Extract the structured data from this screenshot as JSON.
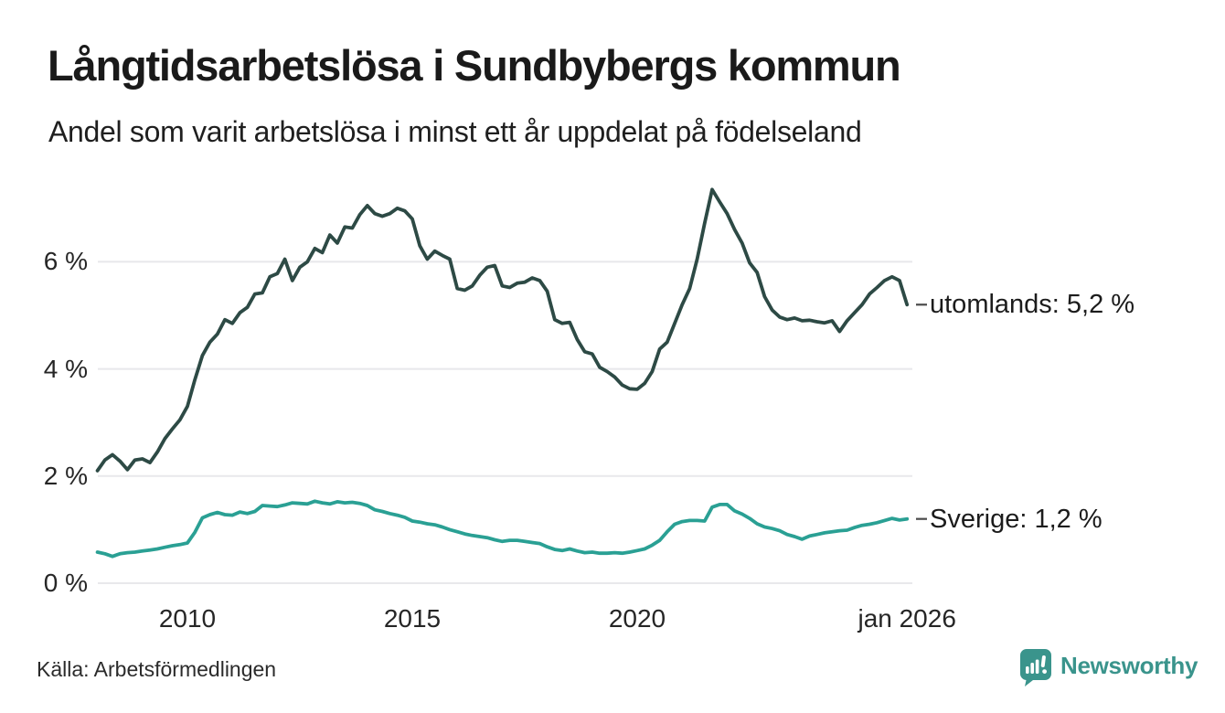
{
  "header": {
    "title": "Långtidsarbetslösa i Sundbybergs kommun",
    "subtitle": "Andel som varit arbetslösa i minst ett år uppdelat på födelseland"
  },
  "source": {
    "label": "Källa: Arbetsförmedlingen"
  },
  "branding": {
    "name": "Newsworthy",
    "color": "#3a948c",
    "icon": "newsworthy-speech-bubble-chart-icon"
  },
  "chart_data": {
    "type": "line",
    "title": "Långtidsarbetslösa i Sundbybergs kommun",
    "subtitle": "Andel som varit arbetslösa i minst ett år uppdelat på födelseland",
    "x_unit": "year (monthly series)",
    "x_range": [
      2008.0,
      2026.0
    ],
    "y_range": [
      0,
      7.75
    ],
    "grid": "horizontal",
    "grid_color": "#e8e8eb",
    "tick_dash_color": "#4a4a4a",
    "yticks": [
      {
        "value": 0,
        "label": "0 %"
      },
      {
        "value": 2,
        "label": "2 %"
      },
      {
        "value": 4,
        "label": "4 %"
      },
      {
        "value": 6,
        "label": "6 %"
      }
    ],
    "xticks": [
      {
        "value": 2010,
        "label": "2010"
      },
      {
        "value": 2015,
        "label": "2015"
      },
      {
        "value": 2020,
        "label": "2020"
      },
      {
        "value": 2026,
        "label": "jan 2026"
      }
    ],
    "series": [
      {
        "name": "utomlands",
        "color": "#2d4a45",
        "end_label": "utomlands: 5,2 %",
        "end_value_pct": 5.2,
        "x_start": 2008.0,
        "x_step": 0.16667,
        "values": [
          2.1,
          2.3,
          2.4,
          2.28,
          2.12,
          2.3,
          2.32,
          2.25,
          2.45,
          2.7,
          2.88,
          3.05,
          3.3,
          3.8,
          4.25,
          4.5,
          4.65,
          4.92,
          4.85,
          5.05,
          5.15,
          5.4,
          5.42,
          5.72,
          5.78,
          6.05,
          5.65,
          5.9,
          6.0,
          6.25,
          6.17,
          6.5,
          6.35,
          6.65,
          6.63,
          6.88,
          7.05,
          6.9,
          6.85,
          6.9,
          7.0,
          6.95,
          6.8,
          6.3,
          6.05,
          6.2,
          6.12,
          6.05,
          5.5,
          5.47,
          5.55,
          5.75,
          5.9,
          5.93,
          5.55,
          5.52,
          5.6,
          5.62,
          5.7,
          5.65,
          5.45,
          4.92,
          4.85,
          4.87,
          4.55,
          4.32,
          4.28,
          4.03,
          3.95,
          3.85,
          3.7,
          3.63,
          3.62,
          3.73,
          3.95,
          4.37,
          4.5,
          4.85,
          5.2,
          5.5,
          6.05,
          6.72,
          7.35,
          7.12,
          6.9,
          6.6,
          6.35,
          5.98,
          5.8,
          5.35,
          5.1,
          4.97,
          4.92,
          4.95,
          4.9,
          4.91,
          4.88,
          4.86,
          4.9,
          4.7,
          4.9,
          5.05,
          5.2,
          5.4,
          5.52,
          5.65,
          5.72,
          5.65,
          5.2
        ]
      },
      {
        "name": "Sverige",
        "color": "#2aa094",
        "end_label": "Sverige: 1,2 %",
        "end_value_pct": 1.2,
        "x_start": 2008.0,
        "x_step": 0.16667,
        "values": [
          0.58,
          0.55,
          0.5,
          0.55,
          0.57,
          0.58,
          0.6,
          0.62,
          0.64,
          0.67,
          0.7,
          0.72,
          0.75,
          0.95,
          1.22,
          1.28,
          1.32,
          1.28,
          1.27,
          1.33,
          1.3,
          1.34,
          1.45,
          1.44,
          1.43,
          1.46,
          1.5,
          1.49,
          1.48,
          1.53,
          1.5,
          1.48,
          1.52,
          1.5,
          1.51,
          1.49,
          1.45,
          1.37,
          1.34,
          1.3,
          1.27,
          1.23,
          1.16,
          1.14,
          1.11,
          1.09,
          1.05,
          1.0,
          0.96,
          0.92,
          0.89,
          0.87,
          0.85,
          0.81,
          0.78,
          0.8,
          0.8,
          0.78,
          0.76,
          0.74,
          0.68,
          0.63,
          0.61,
          0.64,
          0.6,
          0.57,
          0.58,
          0.56,
          0.56,
          0.57,
          0.56,
          0.58,
          0.61,
          0.64,
          0.71,
          0.8,
          0.96,
          1.1,
          1.15,
          1.17,
          1.17,
          1.16,
          1.42,
          1.47,
          1.47,
          1.35,
          1.29,
          1.21,
          1.11,
          1.05,
          1.02,
          0.98,
          0.91,
          0.87,
          0.82,
          0.88,
          0.91,
          0.94,
          0.96,
          0.98,
          0.99,
          1.04,
          1.08,
          1.1,
          1.13,
          1.17,
          1.21,
          1.18,
          1.2
        ]
      }
    ]
  }
}
